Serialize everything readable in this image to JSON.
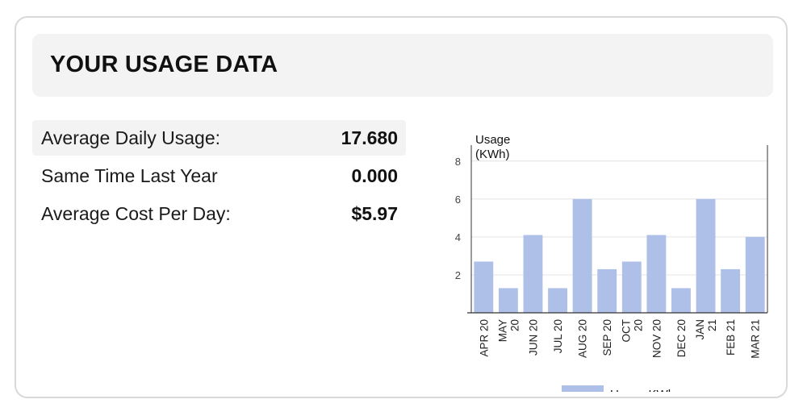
{
  "header": {
    "title": "YOUR USAGE DATA"
  },
  "stats": [
    {
      "label": "Average Daily Usage:",
      "value": "17.680"
    },
    {
      "label": "Same Time Last Year",
      "value": "0.000"
    },
    {
      "label": "Average Cost Per Day:",
      "value": "$5.97"
    }
  ],
  "chart_data": {
    "type": "bar",
    "ylabel_lines": [
      "Usage",
      "(KWh)"
    ],
    "categories": [
      [
        "APR 20"
      ],
      [
        "MAY",
        "20"
      ],
      [
        "JUN 20"
      ],
      [
        "JUL 20"
      ],
      [
        "AUG 20"
      ],
      [
        "SEP 20"
      ],
      [
        "OCT",
        "20"
      ],
      [
        "NOV 20"
      ],
      [
        "DEC 20"
      ],
      [
        "JAN",
        "21"
      ],
      [
        "FEB 21"
      ],
      [
        "MAR 21"
      ]
    ],
    "series": [
      {
        "name": "Usage KWh",
        "color": "#aebfe8",
        "values": [
          2.7,
          1.3,
          4.1,
          1.3,
          6.0,
          2.3,
          2.7,
          4.1,
          1.3,
          6.0,
          2.3,
          4.0
        ]
      }
    ],
    "ylim": [
      0,
      8.5
    ],
    "yticks": [
      2,
      4,
      6,
      8
    ],
    "grid": true,
    "legend": "bottom-center"
  }
}
